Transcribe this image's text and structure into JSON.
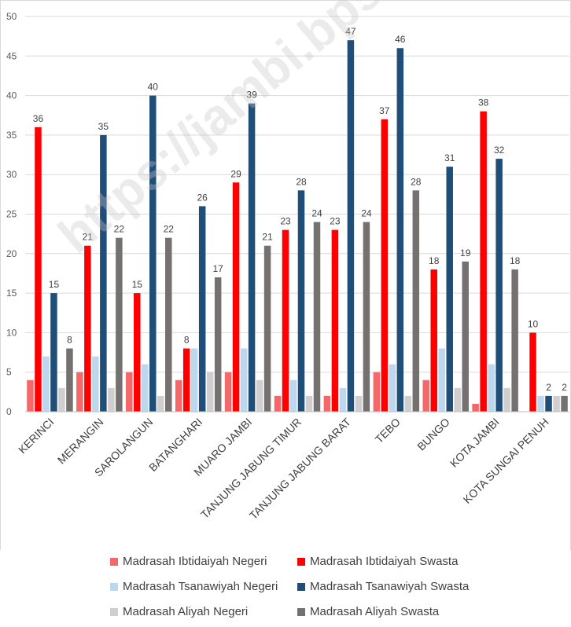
{
  "watermark": "https://jambi.bps.go.id",
  "chart_data": {
    "type": "bar",
    "categories": [
      "KERINCI",
      "MERANGIN",
      "SAROLANGUN",
      "BATANGHARI",
      "MUARO JAMBI",
      "TANJUNG JABUNG TIMUR",
      "TANJUNG JABUNG BARAT",
      "TEBO",
      "BUNGO",
      "KOTA JAMBI",
      "KOTA SUNGAI PENUH"
    ],
    "ylim": [
      0,
      50
    ],
    "yticks": [
      0,
      5,
      10,
      15,
      20,
      25,
      30,
      35,
      40,
      45,
      50
    ],
    "grid": true,
    "legend_position": "bottom",
    "series": [
      {
        "name": "Madrasah Ibtidaiyah Negeri",
        "color": "#f4686a",
        "values": [
          4,
          5,
          5,
          4,
          5,
          2,
          2,
          5,
          4,
          1,
          0
        ],
        "show_labels": false
      },
      {
        "name": "Madrasah Ibtidaiyah Swasta",
        "color": "#ff0000",
        "values": [
          36,
          21,
          15,
          8,
          29,
          23,
          23,
          37,
          18,
          38,
          10
        ],
        "show_labels": true
      },
      {
        "name": "Madrasah Tsanawiyah Negeri",
        "color": "#bdd7ee",
        "values": [
          7,
          7,
          6,
          8,
          8,
          4,
          3,
          6,
          8,
          6,
          2
        ],
        "show_labels": false
      },
      {
        "name": "Madrasah Tsanawiyah Swasta",
        "color": "#1f4e79",
        "values": [
          15,
          35,
          40,
          26,
          39,
          28,
          47,
          46,
          31,
          32,
          2
        ],
        "show_labels": true
      },
      {
        "name": "Madrasah Aliyah Negeri",
        "color": "#d0cece",
        "values": [
          3,
          3,
          2,
          5,
          4,
          2,
          2,
          2,
          3,
          3,
          2
        ],
        "show_labels": false
      },
      {
        "name": "Madrasah Aliyah Swasta",
        "color": "#767171",
        "values": [
          8,
          22,
          22,
          17,
          21,
          24,
          24,
          28,
          19,
          18,
          2
        ],
        "show_labels": true
      }
    ]
  }
}
